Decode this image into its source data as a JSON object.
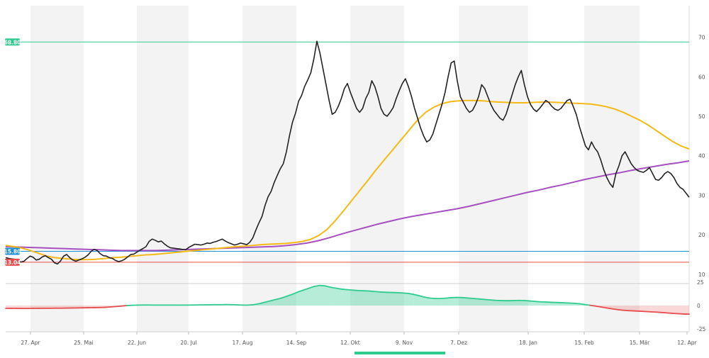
{
  "chart_data": {
    "type": "line",
    "x_labels": [
      "27. Apr",
      "25. Mai",
      "22. Jun",
      "20. Jul",
      "17. Aug",
      "14. Sep",
      "12. Okt",
      "9. Nov",
      "7. Dez",
      "18. Jan",
      "15. Feb",
      "15. Mär",
      "12. Apr"
    ],
    "price_axis": {
      "ylim": [
        8,
        78
      ],
      "ticks": [
        10,
        20,
        30,
        40,
        50,
        60,
        70
      ]
    },
    "indicator_axis": {
      "ylim": [
        -28,
        22
      ],
      "ticks": [
        -25,
        0,
        25
      ]
    },
    "horizontal_levels": [
      {
        "label": "68.80",
        "value": 68.8,
        "color": "#2ecc8f"
      },
      {
        "label": "15.80",
        "value": 15.8,
        "color": "#1f8fd6"
      },
      {
        "label": "13.04",
        "value": 13.04,
        "color": "#e84c4c"
      }
    ],
    "series": [
      {
        "color": "#222222",
        "values": [
          14.2,
          14.0,
          13.9,
          13.8,
          13.4,
          13.1,
          13.3,
          14.0,
          14.6,
          14.3,
          13.6,
          13.8,
          14.4,
          14.7,
          14.2,
          13.8,
          12.9,
          12.6,
          13.4,
          14.6,
          15.0,
          14.2,
          13.6,
          13.3,
          13.6,
          13.9,
          14.3,
          14.9,
          15.8,
          16.3,
          16.0,
          15.2,
          14.7,
          14.6,
          14.2,
          14.0,
          13.5,
          13.2,
          13.4,
          13.8,
          14.4,
          15.0,
          15.1,
          15.6,
          16.1,
          16.5,
          17.0,
          18.3,
          18.9,
          18.6,
          18.2,
          18.4,
          17.7,
          17.1,
          16.7,
          16.6,
          16.5,
          16.4,
          16.3,
          16.2,
          16.8,
          17.2,
          17.6,
          17.5,
          17.4,
          17.6,
          17.9,
          17.8,
          18.1,
          18.3,
          18.6,
          18.9,
          18.4,
          18.0,
          17.7,
          17.4,
          17.6,
          17.9,
          17.7,
          17.5,
          18.1,
          19.2,
          21.2,
          23.0,
          24.6,
          27.4,
          29.6,
          31.0,
          33.2,
          35.0,
          36.7,
          38.0,
          41.0,
          45.0,
          48.5,
          50.8,
          53.8,
          55.3,
          57.6,
          59.2,
          61.0,
          64.5,
          69.0,
          66.0,
          62.0,
          58.0,
          54.0,
          50.5,
          51.0,
          52.5,
          54.5,
          57.0,
          58.3,
          56.0,
          54.0,
          52.0,
          51.0,
          52.0,
          54.5,
          56.0,
          59.0,
          57.5,
          55.0,
          52.0,
          50.5,
          50.0,
          51.0,
          52.2,
          54.5,
          56.5,
          58.3,
          59.5,
          57.5,
          55.0,
          52.0,
          49.5,
          47.0,
          45.0,
          43.5,
          44.0,
          45.5,
          48.0,
          50.5,
          53.0,
          56.0,
          60.0,
          63.5,
          64.0,
          59.0,
          55.0,
          53.5,
          52.0,
          51.0,
          51.5,
          53.0,
          55.0,
          58.0,
          57.0,
          55.0,
          53.0,
          51.5,
          50.5,
          49.5,
          49.0,
          50.5,
          53.0,
          55.5,
          58.0,
          60.0,
          61.6,
          58.0,
          55.0,
          53.0,
          51.8,
          51.2,
          52.0,
          53.0,
          54.0,
          53.5,
          52.5,
          51.8,
          51.5,
          52.0,
          53.0,
          54.0,
          54.3,
          52.5,
          50.5,
          47.5,
          45.0,
          42.5,
          41.5,
          43.5,
          42.0,
          41.0,
          39.0,
          36.5,
          34.5,
          33.0,
          32.0,
          35.5,
          37.5,
          40.0,
          41.0,
          39.5,
          38.0,
          37.0,
          36.3,
          36.0,
          35.8,
          36.3,
          37.0,
          35.5,
          34.0,
          33.8,
          34.5,
          35.5,
          36.0,
          35.5,
          34.5,
          33.0,
          32.0,
          31.5,
          30.5,
          29.5
        ]
      },
      {
        "color": "#f5b914",
        "values": [
          17.3,
          17.0,
          16.6,
          16.0,
          15.3,
          14.6,
          14.2,
          14.0,
          13.8,
          13.7,
          13.7,
          13.8,
          14.0,
          14.2,
          14.3,
          14.5,
          14.7,
          14.9,
          15.0,
          15.2,
          15.4,
          15.6,
          15.8,
          16.0,
          16.2,
          16.4,
          16.6,
          16.8,
          17.0,
          17.1,
          17.3,
          17.5,
          17.6,
          17.7,
          17.8,
          18.0,
          18.3,
          18.8,
          19.8,
          21.3,
          23.5,
          26.0,
          28.6,
          31.2,
          33.8,
          36.5,
          39.0,
          41.5,
          44.0,
          46.5,
          49.0,
          51.0,
          52.3,
          53.2,
          53.7,
          53.9,
          54.0,
          54.0,
          53.9,
          53.7,
          53.6,
          53.5,
          53.4,
          53.4,
          53.5,
          53.6,
          53.6,
          53.5,
          53.4,
          53.3,
          53.2,
          53.1,
          52.8,
          52.4,
          51.8,
          51.0,
          50.0,
          49.0,
          47.8,
          46.4,
          45.0,
          43.6,
          42.5,
          41.7
        ]
      },
      {
        "color": "#a64fc0",
        "values": [
          17.0,
          16.9,
          16.8,
          16.7,
          16.6,
          16.5,
          16.4,
          16.3,
          16.2,
          16.1,
          16.0,
          16.0,
          16.0,
          16.0,
          16.1,
          16.2,
          16.3,
          16.4,
          16.5,
          16.6,
          16.7,
          16.8,
          16.9,
          17.0,
          17.2,
          17.5,
          17.9,
          18.5,
          19.3,
          20.2,
          21.0,
          21.8,
          22.6,
          23.3,
          24.0,
          24.6,
          25.1,
          25.6,
          26.1,
          26.6,
          27.2,
          27.9,
          28.6,
          29.3,
          30.0,
          30.7,
          31.3,
          32.0,
          32.6,
          33.3,
          34.0,
          34.6,
          35.2,
          35.7,
          36.3,
          36.8,
          37.3,
          37.8,
          38.2,
          38.7
        ]
      },
      {
        "color": "#2ecc8f",
        "values": [
          -3.0,
          -3.0,
          -3.0,
          -3.1,
          -3.1,
          -3.0,
          -3.0,
          -2.9,
          -2.9,
          -2.8,
          -2.8,
          -2.7,
          -2.6,
          -2.5,
          -2.4,
          -2.3,
          -2.2,
          -2.1,
          -1.9,
          -1.5,
          -1.0,
          -0.5,
          0.0,
          0.3,
          0.5,
          0.6,
          0.6,
          0.5,
          0.5,
          0.5,
          0.5,
          0.5,
          0.5,
          0.5,
          0.6,
          0.7,
          0.8,
          0.9,
          1.0,
          1.0,
          1.1,
          1.0,
          0.8,
          0.5,
          0.5,
          1.0,
          2.0,
          3.5,
          5.0,
          6.5,
          8.0,
          10.0,
          12.0,
          14.5,
          16.5,
          18.5,
          20.5,
          21.5,
          21.0,
          19.5,
          18.5,
          17.5,
          17.0,
          16.5,
          16.0,
          15.8,
          15.5,
          15.0,
          14.5,
          14.2,
          14.0,
          13.8,
          13.5,
          13.0,
          12.0,
          10.5,
          9.0,
          8.0,
          7.5,
          7.5,
          8.0,
          8.5,
          8.7,
          8.5,
          8.0,
          7.5,
          7.0,
          6.5,
          6.0,
          5.5,
          5.3,
          5.2,
          5.3,
          5.5,
          5.4,
          5.0,
          4.5,
          4.0,
          3.8,
          3.5,
          3.3,
          3.0,
          2.8,
          2.5,
          2.0,
          1.2,
          0.3,
          -0.5,
          -1.5,
          -2.5,
          -3.5,
          -4.3,
          -5.0,
          -5.4,
          -5.7,
          -6.0,
          -6.3,
          -6.7,
          -7.0,
          -7.4,
          -7.8,
          -8.3,
          -8.7,
          -9.0,
          -9.2
        ]
      }
    ]
  }
}
